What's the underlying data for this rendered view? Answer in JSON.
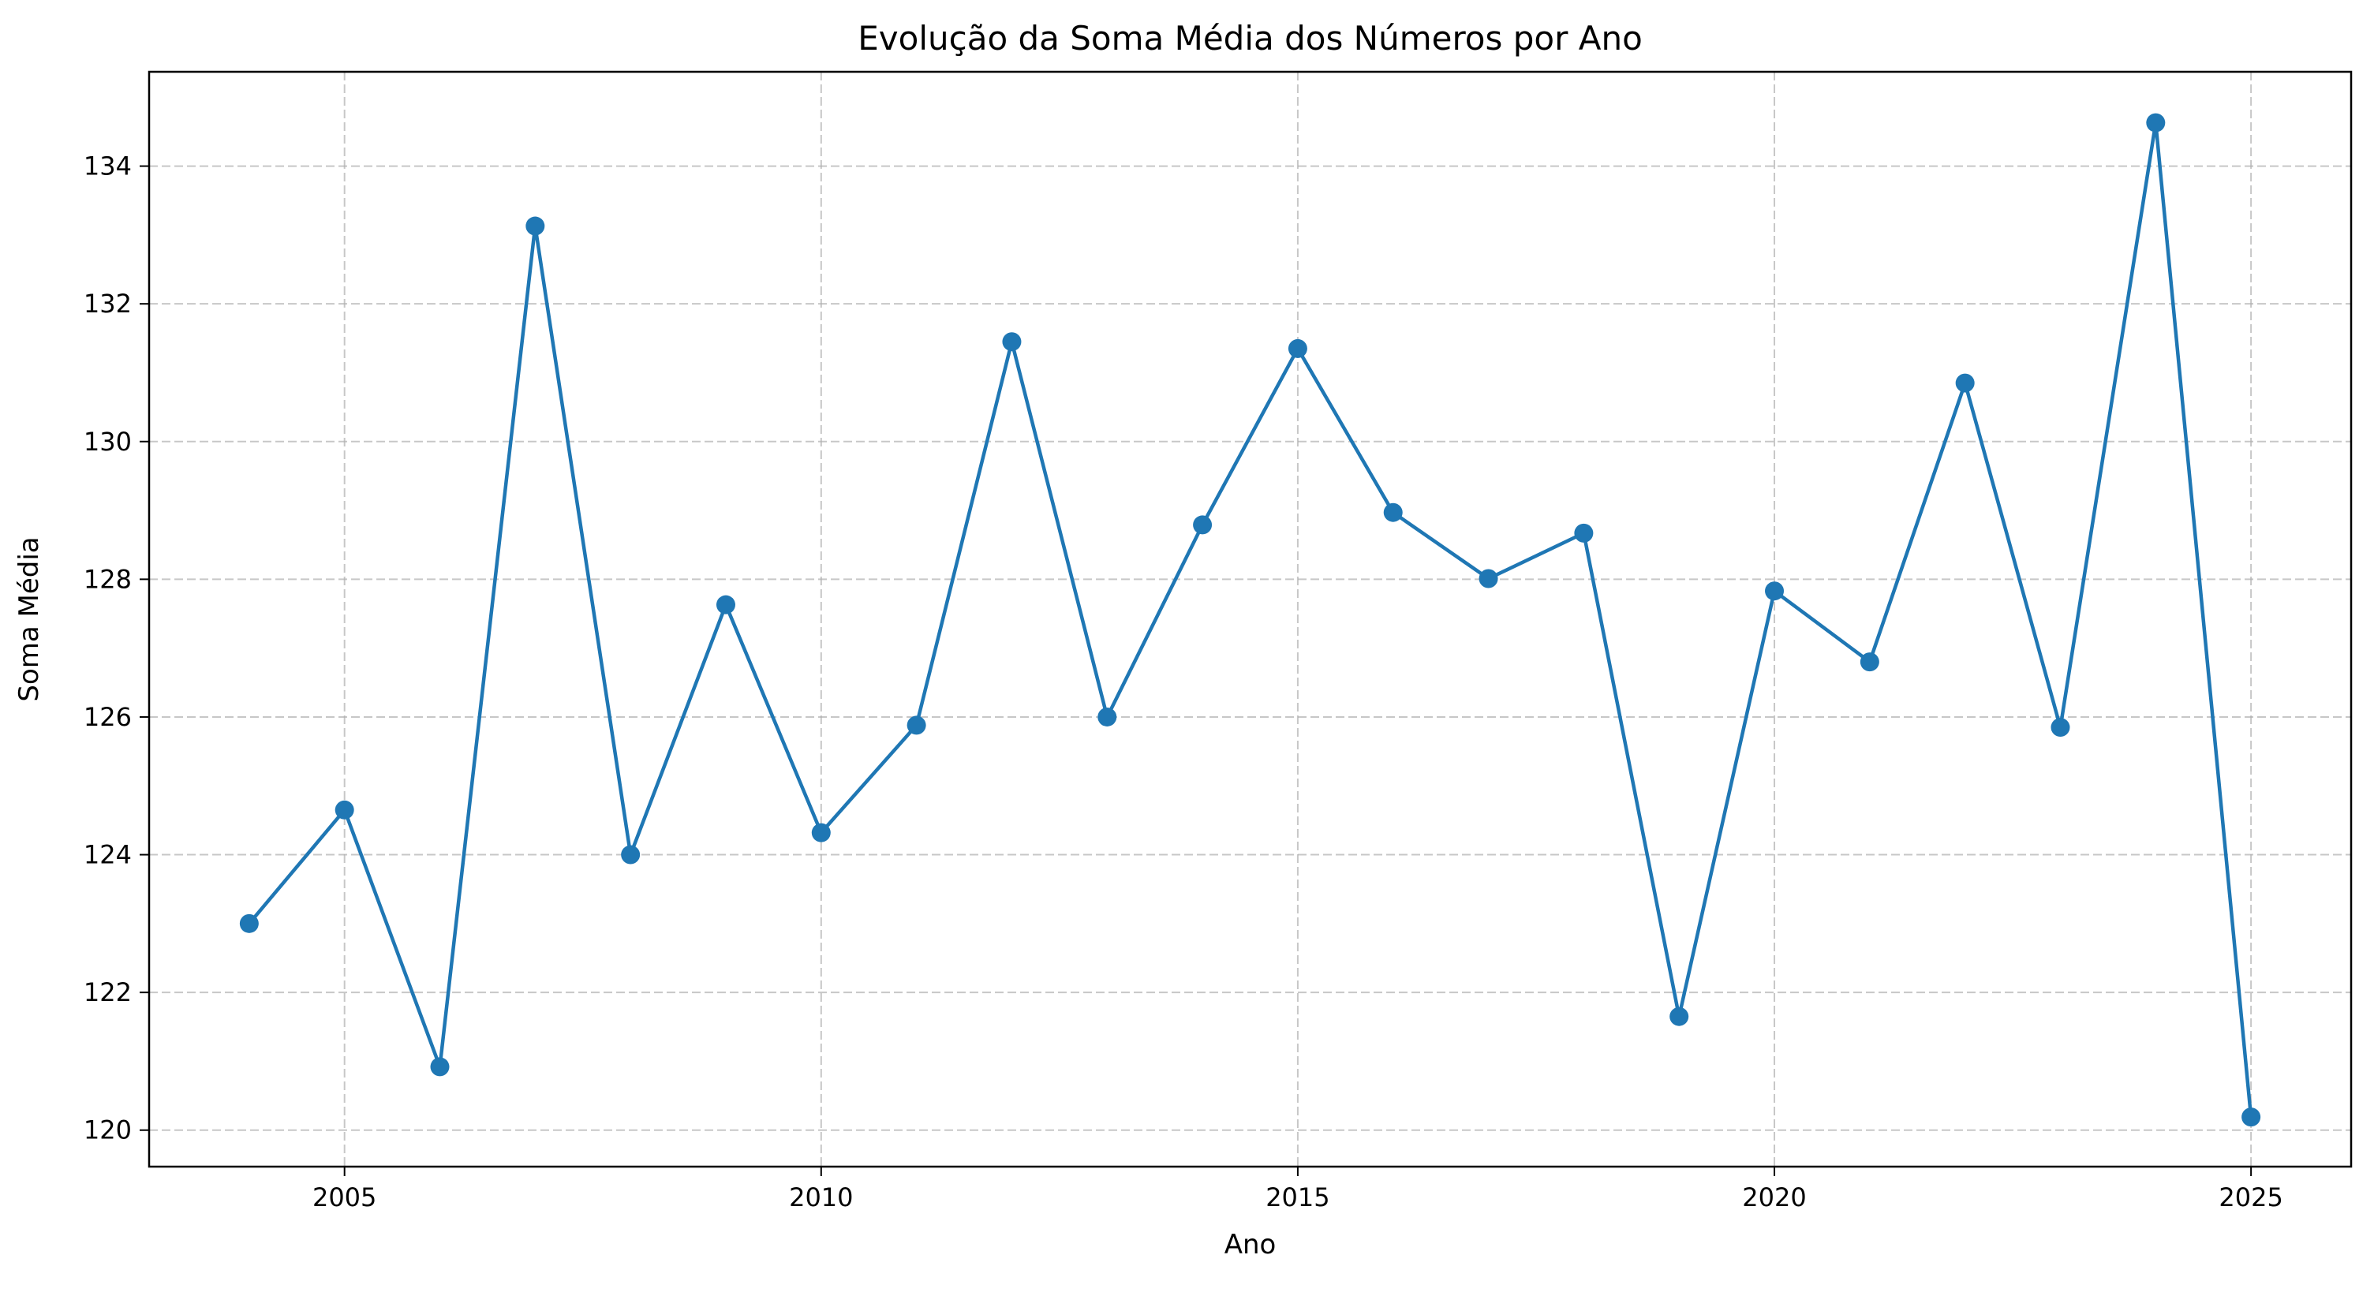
{
  "chart_data": {
    "type": "line",
    "title": "Evolução da Soma Média dos Números por Ano",
    "xlabel": "Ano",
    "ylabel": "Soma Média",
    "xlim": [
      2002.95,
      2026.05
    ],
    "ylim": [
      119.47,
      135.37
    ],
    "xticks": [
      2005,
      2010,
      2015,
      2020,
      2025
    ],
    "yticks": [
      120,
      122,
      124,
      126,
      128,
      130,
      132,
      134
    ],
    "grid": true,
    "marker": "circle",
    "color": "#1f77b4",
    "x": [
      2004,
      2005,
      2006,
      2007,
      2008,
      2009,
      2010,
      2011,
      2012,
      2013,
      2014,
      2015,
      2016,
      2017,
      2018,
      2019,
      2020,
      2021,
      2022,
      2023,
      2024,
      2025
    ],
    "series": [
      {
        "values": [
          123.0,
          124.65,
          120.92,
          133.13,
          124.0,
          127.63,
          124.32,
          125.88,
          131.45,
          126.0,
          128.79,
          131.35,
          128.97,
          128.01,
          128.67,
          121.65,
          127.83,
          126.8,
          130.85,
          125.85,
          134.63,
          120.19
        ]
      }
    ]
  }
}
